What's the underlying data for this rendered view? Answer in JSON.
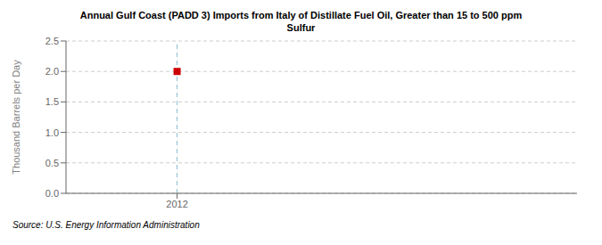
{
  "chart_data": {
    "type": "scatter",
    "title": "Annual Gulf Coast (PADD 3) Imports from Italy of Distillate Fuel Oil, Greater than 15 to 500 ppm\nSulfur",
    "ylabel": "Thousand Barrels per Day",
    "source": "Source: U.S. Energy Information Administration",
    "x": [
      2012
    ],
    "values": [
      2.0
    ],
    "color": "#cc0000",
    "marker": "square",
    "xlim": [
      2011.5,
      2013.8
    ],
    "ylim": [
      0.0,
      2.5
    ],
    "xticks": [
      2012
    ],
    "yticks": [
      {
        "value": 0,
        "label": "0.0"
      },
      0.5,
      {
        "value": 1,
        "label": "1.0"
      },
      1.5,
      {
        "value": 2,
        "label": "2.0"
      },
      2.5
    ],
    "grid": true,
    "vline": {
      "x": 2012,
      "color": "#88bbcc",
      "line_style": "dashed"
    }
  }
}
